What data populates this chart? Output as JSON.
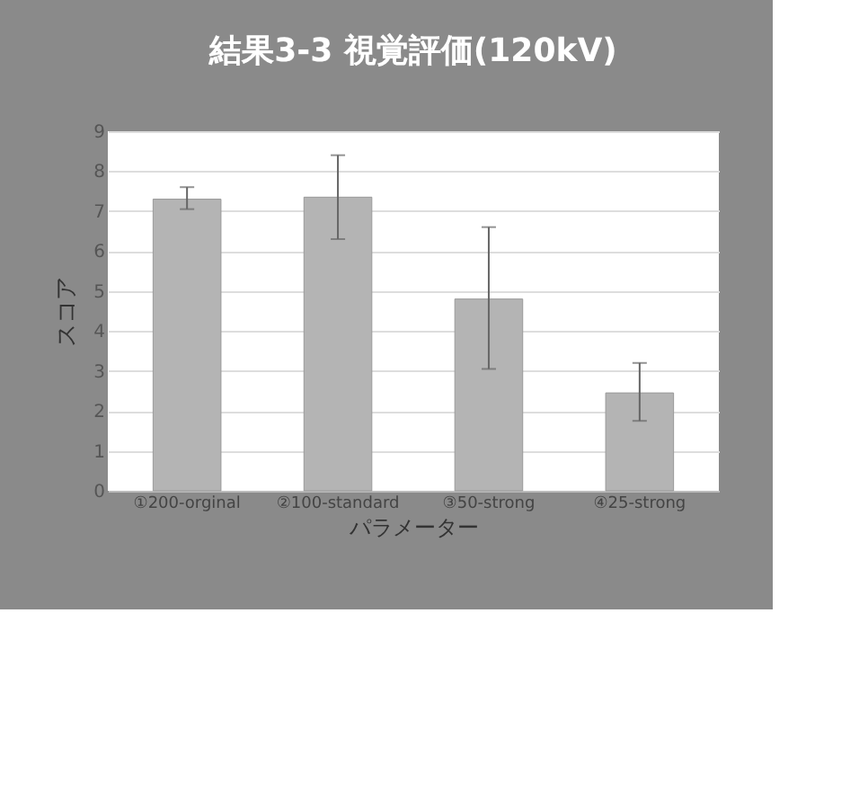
{
  "chart_data": {
    "type": "bar",
    "title": "結果3-3  視覚評価(120kV)",
    "xlabel": "パラメーター",
    "ylabel": "スコア",
    "categories": [
      "①200-orginal",
      "②100-standard",
      "③50-strong",
      "④25-strong"
    ],
    "values": [
      7.3,
      7.35,
      4.8,
      2.45
    ],
    "color": "#b4b4b4",
    "errors": [
      [
        7.05,
        7.6
      ],
      [
        6.3,
        8.4
      ],
      [
        3.05,
        6.6
      ],
      [
        1.75,
        3.2
      ]
    ],
    "ylim": [
      0,
      9
    ],
    "yticks": [
      0,
      1,
      2,
      3,
      4,
      5,
      6,
      7,
      8,
      9
    ],
    "grid": "y"
  }
}
